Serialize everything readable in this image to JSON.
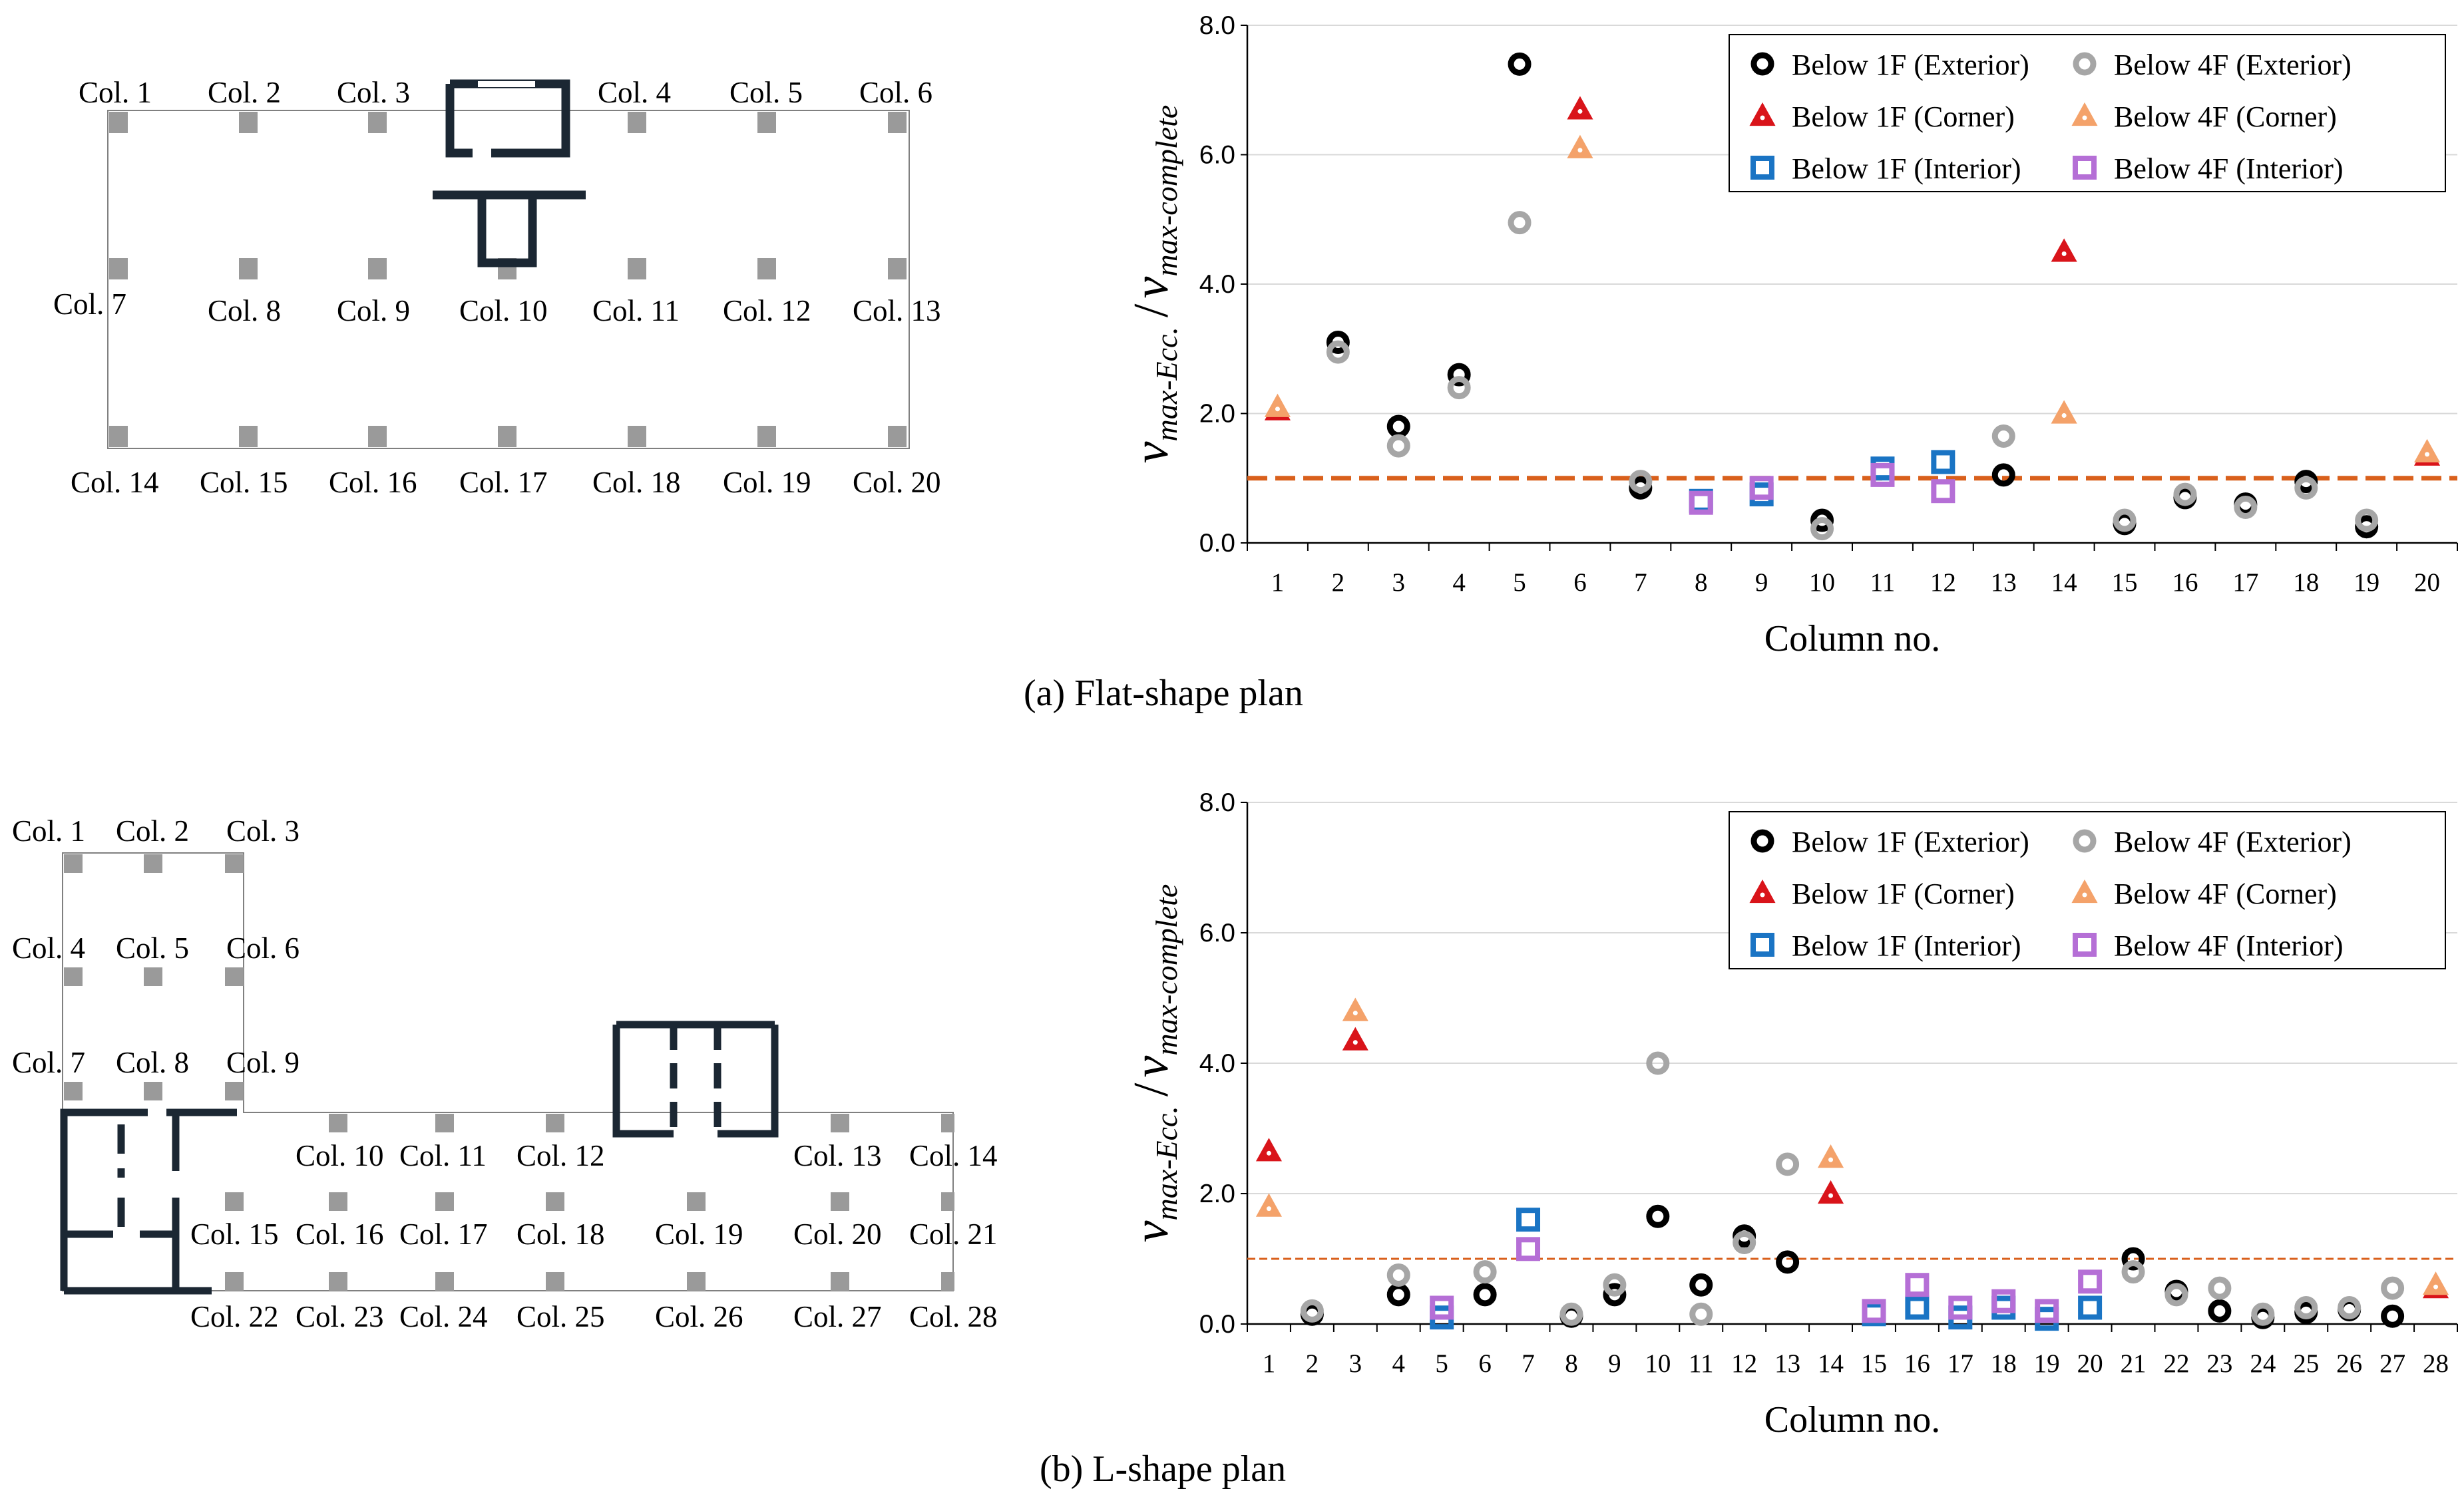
{
  "captions": {
    "a": "(a) Flat-shape plan",
    "b": "(b) L-shape plan"
  },
  "plan_a_labels": [
    "Col. 1",
    "Col. 2",
    "Col. 3",
    "Col. 4",
    "Col. 5",
    "Col. 6",
    "Col. 7",
    "Col. 8",
    "Col. 9",
    "Col. 10",
    "Col. 11",
    "Col. 12",
    "Col. 13",
    "Col. 14",
    "Col. 15",
    "Col. 16",
    "Col. 17",
    "Col. 18",
    "Col. 19",
    "Col. 20"
  ],
  "plan_b_labels": [
    "Col. 1",
    "Col. 2",
    "Col. 3",
    "Col. 4",
    "Col. 5",
    "Col. 6",
    "Col. 7",
    "Col. 8",
    "Col. 9",
    "Col. 10",
    "Col. 11",
    "Col. 12",
    "Col. 13",
    "Col. 14",
    "Col. 15",
    "Col. 16",
    "Col. 17",
    "Col. 18",
    "Col. 19",
    "Col. 20",
    "Col. 21",
    "Col. 22",
    "Col. 23",
    "Col. 24",
    "Col. 25",
    "Col. 26",
    "Col. 27",
    "Col. 28"
  ],
  "colors": {
    "exterior_1F": "#000000",
    "exterior_4F": "#a6a6a6",
    "corner_1F": "#d9141a",
    "corner_4F": "#f4a26a",
    "interior_1F": "#1a74c4",
    "interior_4F": "#b56fd6",
    "reference_line": "#d9601c"
  },
  "chart_data": [
    {
      "type": "scatter",
      "xlabel": "Column no.",
      "ylabel_main": "v",
      "ylabel_sub1": "max-Ecc.",
      "ylabel_sub2": "max-complete",
      "ylim": [
        0,
        8
      ],
      "yticks": [
        "0.0",
        "2.0",
        "4.0",
        "6.0",
        "8.0"
      ],
      "ytick_values": [
        0,
        2,
        4,
        6,
        8
      ],
      "categories": [
        "1",
        "2",
        "3",
        "4",
        "5",
        "6",
        "7",
        "8",
        "9",
        "10",
        "11",
        "12",
        "13",
        "14",
        "15",
        "16",
        "17",
        "18",
        "19",
        "20"
      ],
      "reference_line": 1.0,
      "reference_style": "thick",
      "series": [
        {
          "name": "Below 1F (Exterior)",
          "marker": "circle",
          "color": "#000000",
          "points": [
            [
              2,
              3.1
            ],
            [
              3,
              1.8
            ],
            [
              4,
              2.6
            ],
            [
              5,
              7.4
            ],
            [
              7,
              0.85
            ],
            [
              10,
              0.35
            ],
            [
              13,
              1.05
            ],
            [
              15,
              0.3
            ],
            [
              16,
              0.7
            ],
            [
              17,
              0.6
            ],
            [
              18,
              0.95
            ],
            [
              19,
              0.25
            ]
          ]
        },
        {
          "name": "Below 4F (Exterior)",
          "marker": "circle",
          "color": "#a6a6a6",
          "points": [
            [
              2,
              2.95
            ],
            [
              3,
              1.5
            ],
            [
              4,
              2.4
            ],
            [
              5,
              4.95
            ],
            [
              7,
              0.95
            ],
            [
              10,
              0.22
            ],
            [
              13,
              1.65
            ],
            [
              15,
              0.35
            ],
            [
              16,
              0.75
            ],
            [
              17,
              0.55
            ],
            [
              18,
              0.85
            ],
            [
              19,
              0.35
            ]
          ]
        },
        {
          "name": "Below 1F (Corner)",
          "marker": "triangle",
          "color": "#d9141a",
          "points": [
            [
              1,
              2.05
            ],
            [
              6,
              6.7
            ],
            [
              14,
              4.5
            ],
            [
              20,
              1.35
            ]
          ]
        },
        {
          "name": "Below 4F (Corner)",
          "marker": "triangle",
          "color": "#f4a26a",
          "points": [
            [
              1,
              2.1
            ],
            [
              6,
              6.1
            ],
            [
              14,
              2.0
            ],
            [
              20,
              1.4
            ]
          ]
        },
        {
          "name": "Below 1F (Interior)",
          "marker": "square",
          "color": "#1a74c4",
          "points": [
            [
              8,
              0.65
            ],
            [
              9,
              0.75
            ],
            [
              11,
              1.15
            ],
            [
              12,
              1.25
            ]
          ]
        },
        {
          "name": "Below 4F (Interior)",
          "marker": "square",
          "color": "#b56fd6",
          "points": [
            [
              8,
              0.62
            ],
            [
              9,
              0.85
            ],
            [
              11,
              1.05
            ],
            [
              12,
              0.8
            ]
          ]
        }
      ],
      "legend_position": "top-right"
    },
    {
      "type": "scatter",
      "xlabel": "Column no.",
      "ylabel_main": "v",
      "ylabel_sub1": "max-Ecc.",
      "ylabel_sub2": "max-complete",
      "ylim": [
        0,
        8
      ],
      "yticks": [
        "0.0",
        "2.0",
        "4.0",
        "6.0",
        "8.0"
      ],
      "ytick_values": [
        0,
        2,
        4,
        6,
        8
      ],
      "categories": [
        "1",
        "2",
        "3",
        "4",
        "5",
        "6",
        "7",
        "8",
        "9",
        "10",
        "11",
        "12",
        "13",
        "14",
        "15",
        "16",
        "17",
        "18",
        "19",
        "20",
        "21",
        "22",
        "23",
        "24",
        "25",
        "26",
        "27",
        "28"
      ],
      "reference_line": 1.0,
      "reference_style": "thin",
      "series": [
        {
          "name": "Below 1F (Exterior)",
          "marker": "circle",
          "color": "#000000",
          "points": [
            [
              2,
              0.15
            ],
            [
              4,
              0.45
            ],
            [
              6,
              0.45
            ],
            [
              8,
              0.12
            ],
            [
              9,
              0.45
            ],
            [
              10,
              1.65
            ],
            [
              11,
              0.6
            ],
            [
              12,
              1.35
            ],
            [
              13,
              0.95
            ],
            [
              21,
              1.0
            ],
            [
              22,
              0.5
            ],
            [
              23,
              0.2
            ],
            [
              24,
              0.1
            ],
            [
              25,
              0.18
            ],
            [
              26,
              0.22
            ],
            [
              27,
              0.12
            ]
          ]
        },
        {
          "name": "Below 4F (Exterior)",
          "marker": "circle",
          "color": "#a6a6a6",
          "points": [
            [
              2,
              0.2
            ],
            [
              4,
              0.75
            ],
            [
              6,
              0.8
            ],
            [
              8,
              0.15
            ],
            [
              9,
              0.6
            ],
            [
              10,
              4.0
            ],
            [
              11,
              0.15
            ],
            [
              12,
              1.25
            ],
            [
              13,
              2.45
            ],
            [
              21,
              0.8
            ],
            [
              22,
              0.45
            ],
            [
              23,
              0.55
            ],
            [
              24,
              0.15
            ],
            [
              25,
              0.25
            ],
            [
              26,
              0.25
            ],
            [
              27,
              0.55
            ]
          ]
        },
        {
          "name": "Below 1F (Corner)",
          "marker": "triangle",
          "color": "#d9141a",
          "points": [
            [
              1,
              2.65
            ],
            [
              3,
              4.35
            ],
            [
              14,
              2.0
            ],
            [
              28,
              0.55
            ]
          ]
        },
        {
          "name": "Below 4F (Corner)",
          "marker": "triangle",
          "color": "#f4a26a",
          "points": [
            [
              1,
              1.8
            ],
            [
              3,
              4.8
            ],
            [
              14,
              2.55
            ],
            [
              28,
              0.6
            ]
          ]
        },
        {
          "name": "Below 1F (Interior)",
          "marker": "square",
          "color": "#1a74c4",
          "points": [
            [
              5,
              0.1
            ],
            [
              7,
              1.6
            ],
            [
              15,
              0.15
            ],
            [
              16,
              0.25
            ],
            [
              17,
              0.1
            ],
            [
              18,
              0.25
            ],
            [
              19,
              0.08
            ],
            [
              20,
              0.25
            ]
          ]
        },
        {
          "name": "Below 4F (Interior)",
          "marker": "square",
          "color": "#b56fd6",
          "points": [
            [
              5,
              0.25
            ],
            [
              7,
              1.15
            ],
            [
              15,
              0.2
            ],
            [
              16,
              0.6
            ],
            [
              17,
              0.25
            ],
            [
              18,
              0.35
            ],
            [
              19,
              0.2
            ],
            [
              20,
              0.65
            ]
          ]
        }
      ],
      "legend_position": "top-right"
    }
  ]
}
